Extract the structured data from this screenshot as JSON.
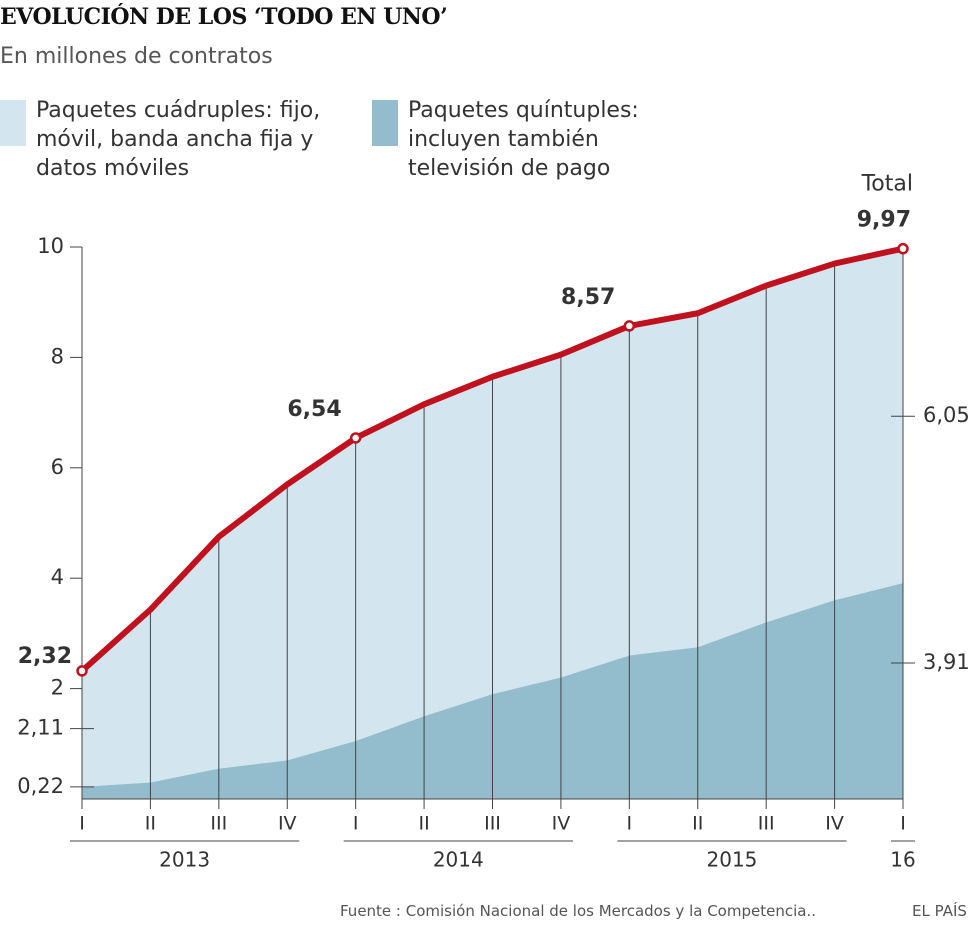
{
  "chart_data": {
    "type": "stacked_area_line",
    "title": "EVOLUCIÓN DE LOS ‘TODO EN UNO’",
    "subtitle": "En millones de contratos",
    "source": "Fuente : Comisión Nacional de los Mercados y la Competencia..",
    "brand": "EL PAÍS",
    "categories": [
      "I",
      "II",
      "III",
      "IV",
      "I",
      "II",
      "III",
      "IV",
      "I",
      "II",
      "III",
      "IV",
      "I"
    ],
    "year_labels": [
      "2013",
      "2014",
      "2015",
      "16"
    ],
    "ylim": [
      0,
      10
    ],
    "yticks": [
      2,
      4,
      6,
      8,
      10
    ],
    "series": [
      {
        "name": "Paquetes quíntuples: incluyen también televisión de pago",
        "color": "#93bdcd",
        "values": [
          0.22,
          0.3,
          0.55,
          0.7,
          1.05,
          1.5,
          1.9,
          2.2,
          2.6,
          2.75,
          3.2,
          3.6,
          3.91
        ],
        "value_labels": [
          "0,22",
          null,
          null,
          null,
          null,
          null,
          null,
          null,
          null,
          null,
          null,
          null,
          "3,91"
        ]
      },
      {
        "name": "Paquetes cuádruples: fijo, móvil, banda ancha fija y datos móviles",
        "color": "#d3e5ee",
        "values": [
          2.11,
          3.13,
          4.2,
          5.0,
          5.49,
          5.65,
          5.75,
          5.85,
          5.97,
          6.05,
          6.1,
          6.1,
          6.05
        ],
        "value_labels": [
          "2,11",
          null,
          null,
          null,
          null,
          null,
          null,
          null,
          null,
          null,
          null,
          null,
          "6,05"
        ]
      },
      {
        "name": "Total",
        "color": "#c0111f",
        "kind": "line",
        "values": [
          2.32,
          3.43,
          4.75,
          5.7,
          6.54,
          7.15,
          7.65,
          8.05,
          8.57,
          8.8,
          9.3,
          9.7,
          9.97
        ],
        "value_labels": [
          "2,32",
          null,
          null,
          null,
          "6,54",
          null,
          null,
          null,
          "8,57",
          null,
          null,
          null,
          "9,97"
        ]
      }
    ]
  }
}
